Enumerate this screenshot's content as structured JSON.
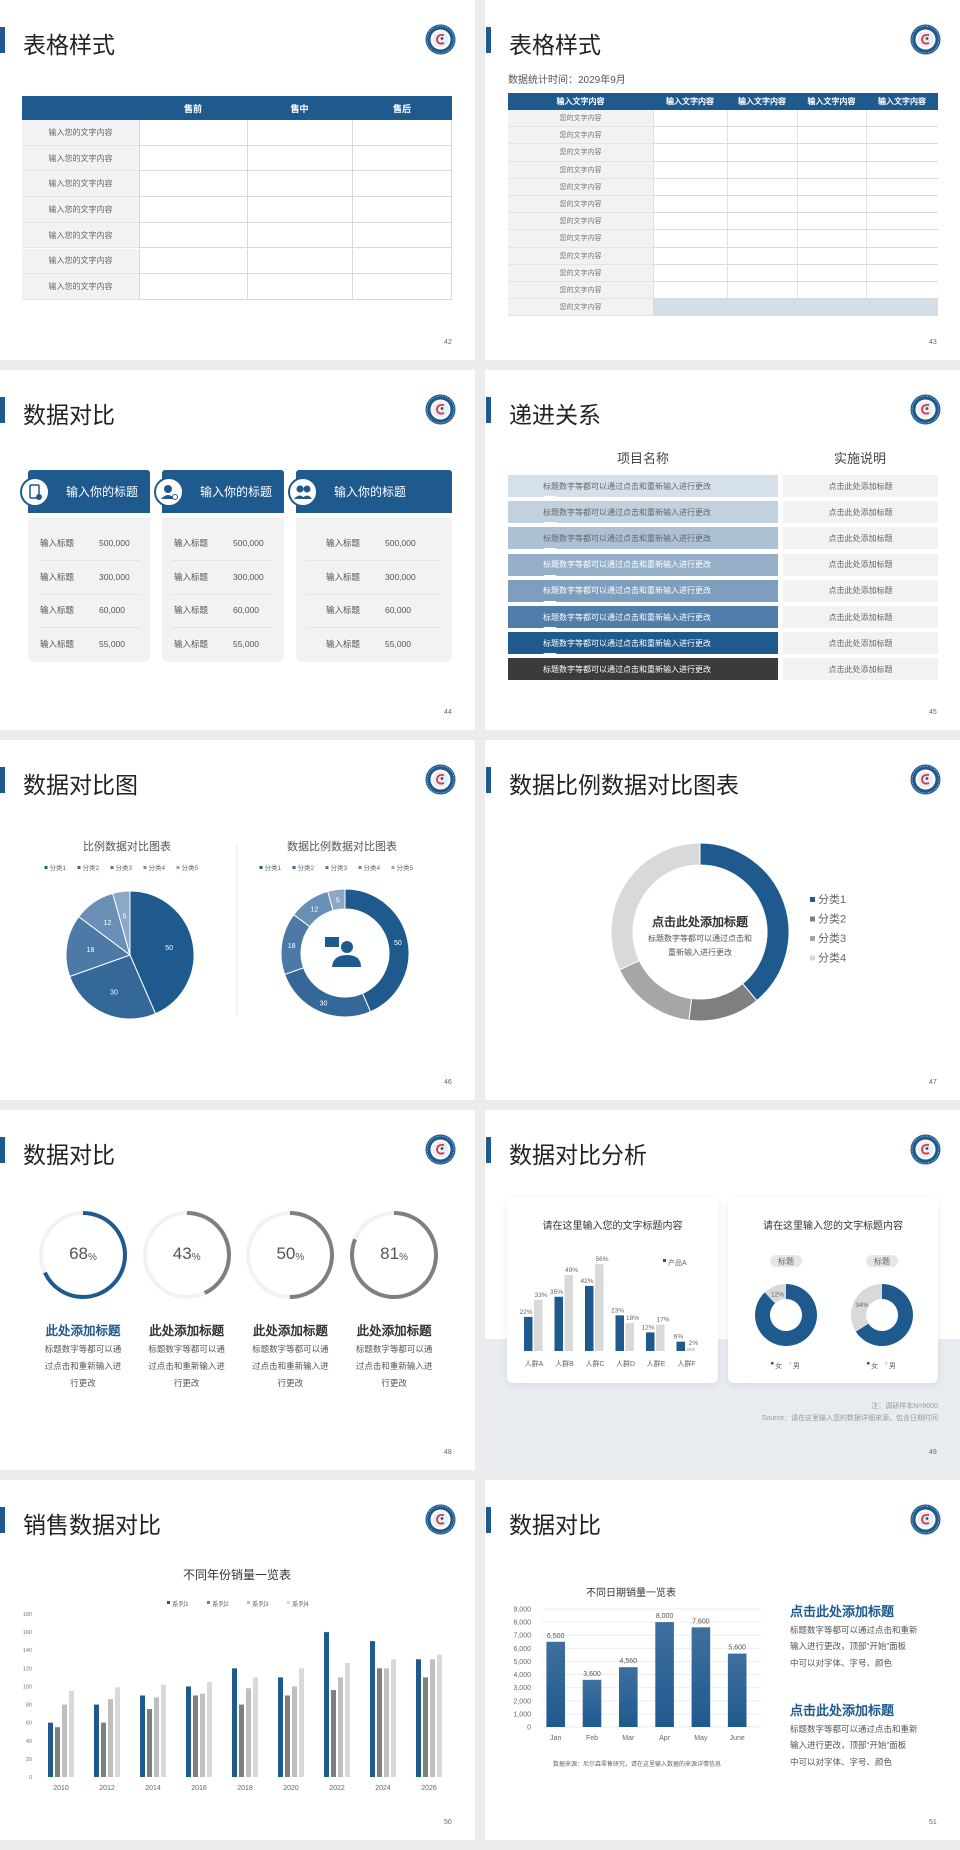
{
  "colors": {
    "primary": "#1f5a8e",
    "dark_gray": "#7f7f7f",
    "mid_gray": "#a6a6a6",
    "light_gray": "#d9d9d9",
    "panel": "#f2f2f2",
    "highlight_row": "#d4dee8"
  },
  "logo_icon": "university-seal-icon",
  "s42": {
    "title": "表格样式",
    "page": "42",
    "headers": [
      "",
      "售前",
      "售中",
      "售后"
    ],
    "rows": [
      "输入您的文字内容",
      "输入您的文字内容",
      "输入您的文字内容",
      "输入您的文字内容",
      "输入您的文字内容",
      "输入您的文字内容",
      "输入您的文字内容"
    ]
  },
  "s43": {
    "title": "表格样式",
    "subtitle": "数据统计时间：2029年9月",
    "page": "43",
    "headers": [
      "输入文字内容",
      "输入文字内容",
      "输入文字内容",
      "输入文字内容",
      "输入文字内容"
    ],
    "rows": [
      "您的文字内容",
      "您的文字内容",
      "您的文字内容",
      "您的文字内容",
      "您的文字内容",
      "您的文字内容",
      "您的文字内容",
      "您的文字内容",
      "您的文字内容",
      "您的文字内容",
      "您的文字内容",
      "您的文字内容"
    ]
  },
  "s44": {
    "title": "数据对比",
    "page": "44",
    "cards": [
      {
        "title": "输入你的标题",
        "icon": "phone-user-icon",
        "rows": [
          {
            "label": "输入标题",
            "value": "500,000"
          },
          {
            "label": "输入标题",
            "value": "300,000"
          },
          {
            "label": "输入标题",
            "value": "60,000"
          },
          {
            "label": "输入标题",
            "value": "55,000"
          }
        ]
      },
      {
        "title": "输入你的标题",
        "icon": "user-search-icon",
        "rows": [
          {
            "label": "输入标题",
            "value": "500,000"
          },
          {
            "label": "输入标题",
            "value": "300,000"
          },
          {
            "label": "输入标题",
            "value": "60,000"
          },
          {
            "label": "输入标题",
            "value": "55,000"
          }
        ]
      },
      {
        "title": "输入你的标题",
        "icon": "team-icon",
        "rows": [
          {
            "label": "输入标题",
            "value": "500,000"
          },
          {
            "label": "输入标题",
            "value": "300,000"
          },
          {
            "label": "输入标题",
            "value": "60,000"
          },
          {
            "label": "输入标题",
            "value": "55,000"
          }
        ]
      }
    ]
  },
  "s45": {
    "title": "递进关系",
    "page": "45",
    "col1": "项目名称",
    "col2": "实施说明",
    "rows": [
      {
        "item": "标题数字等都可以通过点击和重新输入进行更改",
        "note": "点击此处添加标题",
        "color": "#d6e0ea"
      },
      {
        "item": "标题数字等都可以通过点击和重新输入进行更改",
        "note": "点击此处添加标题",
        "color": "#c2d1e0"
      },
      {
        "item": "标题数字等都可以通过点击和重新输入进行更改",
        "note": "点击此处添加标题",
        "color": "#adc1d5"
      },
      {
        "item": "标题数字等都可以通过点击和重新输入进行更改",
        "note": "点击此处添加标题",
        "color": "#95afc9"
      },
      {
        "item": "标题数字等都可以通过点击和重新输入进行更改",
        "note": "点击此处添加标题",
        "color": "#7e9ebe"
      },
      {
        "item": "标题数字等都可以通过点击和重新输入进行更改",
        "note": "点击此处添加标题",
        "color": "#4f7eab"
      },
      {
        "item": "标题数字等都可以通过点击和重新输入进行更改",
        "note": "点击此处添加标题",
        "color": "#1f5a8e"
      },
      {
        "item": "标题数字等都可以通过点击和重新输入进行更改",
        "note": "点击此处添加标题",
        "color": "#3b3b3b"
      }
    ]
  },
  "s46": {
    "title": "数据对比图",
    "page": "46"
  },
  "s47": {
    "title": "数据比例数据对比图表",
    "page": "47",
    "center_title": "点击此处添加标题",
    "center_text": [
      "标题数字等都可以通过点击和",
      "重新输入进行更改"
    ]
  },
  "s48": {
    "title": "数据对比",
    "page": "48",
    "items": [
      {
        "value": 68,
        "unit": "%",
        "heading": "此处添加标题",
        "text": [
          "标题数字等都可以通",
          "过点击和重新输入进",
          "行更改"
        ],
        "color": "#1f5a8e",
        "heading_color": "#1f5a8e"
      },
      {
        "value": 43,
        "unit": "%",
        "heading": "此处添加标题",
        "text": [
          "标题数字等都可以通",
          "过点击和重新输入进",
          "行更改"
        ],
        "color": "#7f7f7f",
        "heading_color": "#333333"
      },
      {
        "value": 50,
        "unit": "%",
        "heading": "此处添加标题",
        "text": [
          "标题数字等都可以通",
          "过点击和重新输入进",
          "行更改"
        ],
        "color": "#7f7f7f",
        "heading_color": "#333333"
      },
      {
        "value": 81,
        "unit": "%",
        "heading": "此处添加标题",
        "text": [
          "标题数字等都可以通",
          "过点击和重新输入进",
          "行更改"
        ],
        "color": "#7f7f7f",
        "heading_color": "#333333"
      }
    ]
  },
  "s49": {
    "title": "数据对比分析",
    "page": "49",
    "card1_title": "请在这里输入您的文字标题内容",
    "card2_title": "请在这里输入您的文字标题内容",
    "note": "注：调研样本N=9000",
    "source": "Source：请在这里输入您的数据详细来源，包含日期时间"
  },
  "s50": {
    "title": "销售数据对比",
    "page": "50"
  },
  "s51": {
    "title": "数据对比",
    "page": "51",
    "blocks": [
      {
        "heading": "点击此处添加标题",
        "lines": [
          "标题数字等都可以通过点击和重新",
          "输入进行更改，顶部“开始”面板",
          "中可以对字体、字号、颜色"
        ]
      },
      {
        "heading": "点击此处添加标题",
        "lines": [
          "标题数字等都可以通过点击和重新",
          "输入进行更改，顶部“开始”面板",
          "中可以对字体、字号、颜色"
        ]
      }
    ]
  },
  "chart_data": [
    {
      "id": "s46-pie",
      "type": "pie",
      "title": "比例数据对比图表",
      "categories": [
        "分类1",
        "分类2",
        "分类3",
        "分类4",
        "分类5"
      ],
      "values": [
        50,
        30,
        18,
        12,
        5
      ],
      "colors": [
        "#1f5a8e",
        "#346898",
        "#4c79a5",
        "#6a8fb6",
        "#8ca8c6"
      ],
      "legend": "top"
    },
    {
      "id": "s46-donut",
      "type": "pie",
      "donut": true,
      "title": "数据比例数据对比图表",
      "categories": [
        "分类1",
        "分类2",
        "分类3",
        "分类4",
        "分类5"
      ],
      "values": [
        50,
        30,
        18,
        12,
        5
      ],
      "colors": [
        "#1f5a8e",
        "#346898",
        "#4c79a5",
        "#6a8fb6",
        "#8ca8c6"
      ],
      "legend": "top",
      "center_icon": "customer-service-agent-icon"
    },
    {
      "id": "s47-donut",
      "type": "pie",
      "donut": true,
      "categories": [
        "分类1",
        "分类2",
        "分类3",
        "分类4"
      ],
      "values": [
        39,
        13,
        16,
        32
      ],
      "colors": [
        "#1f5a8e",
        "#7f7f7f",
        "#a6a6a6",
        "#d9d9d9"
      ],
      "legend": "right"
    },
    {
      "id": "s49-bar",
      "type": "bar",
      "categories": [
        "人群A",
        "人群B",
        "人群C",
        "人群D",
        "人群E",
        "人群F"
      ],
      "series": [
        {
          "name": "产品A",
          "values": [
            22,
            35,
            42,
            23,
            12,
            6
          ],
          "color": "#1f5a8e"
        },
        {
          "values": [
            33,
            49,
            56,
            18,
            17,
            2
          ],
          "color": "#d9d9d9"
        }
      ],
      "unit": "%",
      "legend": "top-right"
    },
    {
      "id": "s49-donuts",
      "type": "pie",
      "donut": true,
      "charts": [
        {
          "label": "标题",
          "values": [
            88,
            12
          ]
        },
        {
          "label": "标题",
          "values": [
            66,
            34
          ]
        }
      ],
      "categories": [
        "女",
        "男"
      ],
      "colors": [
        "#1f5a8e",
        "#d9d9d9"
      ],
      "shown_labels": [
        "12%",
        "34%"
      ],
      "legend": "bottom"
    },
    {
      "id": "s50-bar",
      "type": "bar",
      "title": "不同年份销量一览表",
      "categories": [
        "2010",
        "2012",
        "2014",
        "2016",
        "2018",
        "2020",
        "2022",
        "2024",
        "2026"
      ],
      "series": [
        {
          "name": "系列1",
          "values": [
            60,
            80,
            90,
            100,
            120,
            110,
            160,
            150,
            130
          ],
          "color": "#1f5a8e"
        },
        {
          "name": "系列2",
          "values": [
            55,
            60,
            75,
            90,
            80,
            90,
            96,
            120,
            110
          ],
          "color": "#7f7f7f"
        },
        {
          "name": "系列3",
          "values": [
            80,
            86,
            88,
            92,
            98,
            100,
            110,
            120,
            130
          ],
          "color": "#bfbfbf"
        },
        {
          "name": "系列4",
          "values": [
            95,
            99,
            102,
            105,
            110,
            120,
            126,
            130,
            135
          ],
          "color": "#d9d9d9"
        }
      ],
      "ylim": [
        0,
        180
      ],
      "yticks": [
        "0",
        "20",
        "40",
        "60",
        "80",
        "100",
        "120",
        "140",
        "160",
        "180"
      ],
      "legend": "top"
    },
    {
      "id": "s51-bar",
      "type": "bar",
      "title": "不同日期销量一览表",
      "categories": [
        "Jan",
        "Feb",
        "Mar",
        "Apr",
        "May",
        "June"
      ],
      "values": [
        6500,
        3600,
        4560,
        8000,
        7600,
        5600
      ],
      "data_labels": [
        "6,500",
        "3,600",
        "4,560",
        "8,000",
        "7,600",
        "5,600"
      ],
      "ylim": [
        0,
        9000
      ],
      "yticks": [
        "0",
        "1,000",
        "2,000",
        "3,000",
        "4,000",
        "5,000",
        "6,000",
        "7,000",
        "8,000",
        "9,000"
      ],
      "grid": true,
      "source": "数据来源：尼尔森零售研究，请在这里输入数据的来源详情信息"
    }
  ]
}
